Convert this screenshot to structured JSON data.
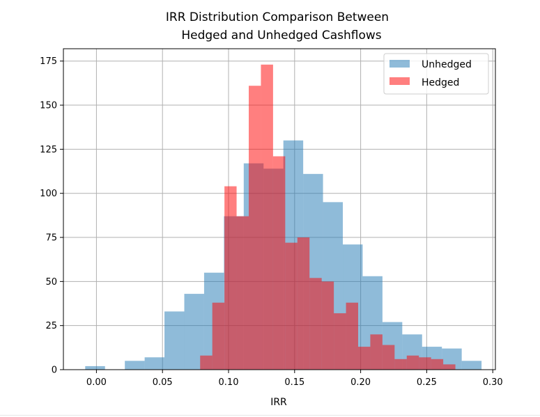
{
  "chart_data": {
    "type": "bar",
    "subtype": "overlaid-histogram",
    "title_lines": [
      "IRR Distribution Comparison Between",
      "Hedged and Unhedged Cashflows"
    ],
    "xlabel": "IRR",
    "ylabel": "",
    "xlim": [
      -0.025,
      0.302
    ],
    "ylim": [
      0,
      182
    ],
    "x_ticks": [
      {
        "value": 0.0,
        "label": "0.00"
      },
      {
        "value": 0.05,
        "label": "0.05"
      },
      {
        "value": 0.1,
        "label": "0.10"
      },
      {
        "value": 0.15,
        "label": "0.15"
      },
      {
        "value": 0.2,
        "label": "0.20"
      },
      {
        "value": 0.25,
        "label": "0.25"
      },
      {
        "value": 0.3,
        "label": "0.30"
      }
    ],
    "y_ticks": [
      {
        "value": 0,
        "label": "0"
      },
      {
        "value": 25,
        "label": "25"
      },
      {
        "value": 50,
        "label": "50"
      },
      {
        "value": 75,
        "label": "75"
      },
      {
        "value": 100,
        "label": "100"
      },
      {
        "value": 125,
        "label": "125"
      },
      {
        "value": 150,
        "label": "150"
      },
      {
        "value": 175,
        "label": "175"
      }
    ],
    "grid": true,
    "legend_position": "upper-right",
    "series": [
      {
        "name": "Unhedged",
        "color": "#1f77b4",
        "opacity": 0.5,
        "bins": [
          {
            "x0": -0.0085,
            "x1": 0.0065,
            "count": 2
          },
          {
            "x0": 0.0065,
            "x1": 0.0215,
            "count": 0
          },
          {
            "x0": 0.0215,
            "x1": 0.0365,
            "count": 5
          },
          {
            "x0": 0.0365,
            "x1": 0.0515,
            "count": 7
          },
          {
            "x0": 0.0515,
            "x1": 0.0665,
            "count": 33
          },
          {
            "x0": 0.0665,
            "x1": 0.0815,
            "count": 43
          },
          {
            "x0": 0.0815,
            "x1": 0.0965,
            "count": 55
          },
          {
            "x0": 0.0965,
            "x1": 0.1115,
            "count": 87
          },
          {
            "x0": 0.1115,
            "x1": 0.1265,
            "count": 117
          },
          {
            "x0": 0.1265,
            "x1": 0.1415,
            "count": 114
          },
          {
            "x0": 0.1415,
            "x1": 0.1565,
            "count": 130
          },
          {
            "x0": 0.1565,
            "x1": 0.1715,
            "count": 111
          },
          {
            "x0": 0.1715,
            "x1": 0.1865,
            "count": 95
          },
          {
            "x0": 0.1865,
            "x1": 0.2015,
            "count": 71
          },
          {
            "x0": 0.2015,
            "x1": 0.2165,
            "count": 53
          },
          {
            "x0": 0.2165,
            "x1": 0.2315,
            "count": 27
          },
          {
            "x0": 0.2315,
            "x1": 0.2465,
            "count": 20
          },
          {
            "x0": 0.2465,
            "x1": 0.2615,
            "count": 13
          },
          {
            "x0": 0.2615,
            "x1": 0.2765,
            "count": 12
          },
          {
            "x0": 0.2765,
            "x1": 0.2915,
            "count": 5
          }
        ]
      },
      {
        "name": "Hedged",
        "color": "#ff0000",
        "opacity": 0.5,
        "bins": [
          {
            "x0": 0.0785,
            "x1": 0.0877,
            "count": 8
          },
          {
            "x0": 0.0877,
            "x1": 0.0969,
            "count": 38
          },
          {
            "x0": 0.0969,
            "x1": 0.1061,
            "count": 104
          },
          {
            "x0": 0.1061,
            "x1": 0.1153,
            "count": 87
          },
          {
            "x0": 0.1153,
            "x1": 0.1245,
            "count": 161
          },
          {
            "x0": 0.1245,
            "x1": 0.1337,
            "count": 173
          },
          {
            "x0": 0.1337,
            "x1": 0.1429,
            "count": 121
          },
          {
            "x0": 0.1429,
            "x1": 0.1521,
            "count": 72
          },
          {
            "x0": 0.1521,
            "x1": 0.1613,
            "count": 75
          },
          {
            "x0": 0.1613,
            "x1": 0.1705,
            "count": 52
          },
          {
            "x0": 0.1705,
            "x1": 0.1797,
            "count": 50
          },
          {
            "x0": 0.1797,
            "x1": 0.1889,
            "count": 32
          },
          {
            "x0": 0.1889,
            "x1": 0.1981,
            "count": 38
          },
          {
            "x0": 0.1981,
            "x1": 0.2073,
            "count": 13
          },
          {
            "x0": 0.2073,
            "x1": 0.2165,
            "count": 20
          },
          {
            "x0": 0.2165,
            "x1": 0.2257,
            "count": 14
          },
          {
            "x0": 0.2257,
            "x1": 0.2349,
            "count": 6
          },
          {
            "x0": 0.2349,
            "x1": 0.2441,
            "count": 8
          },
          {
            "x0": 0.2441,
            "x1": 0.2533,
            "count": 7
          },
          {
            "x0": 0.2533,
            "x1": 0.2625,
            "count": 6
          },
          {
            "x0": 0.2625,
            "x1": 0.2717,
            "count": 3
          }
        ]
      }
    ]
  }
}
